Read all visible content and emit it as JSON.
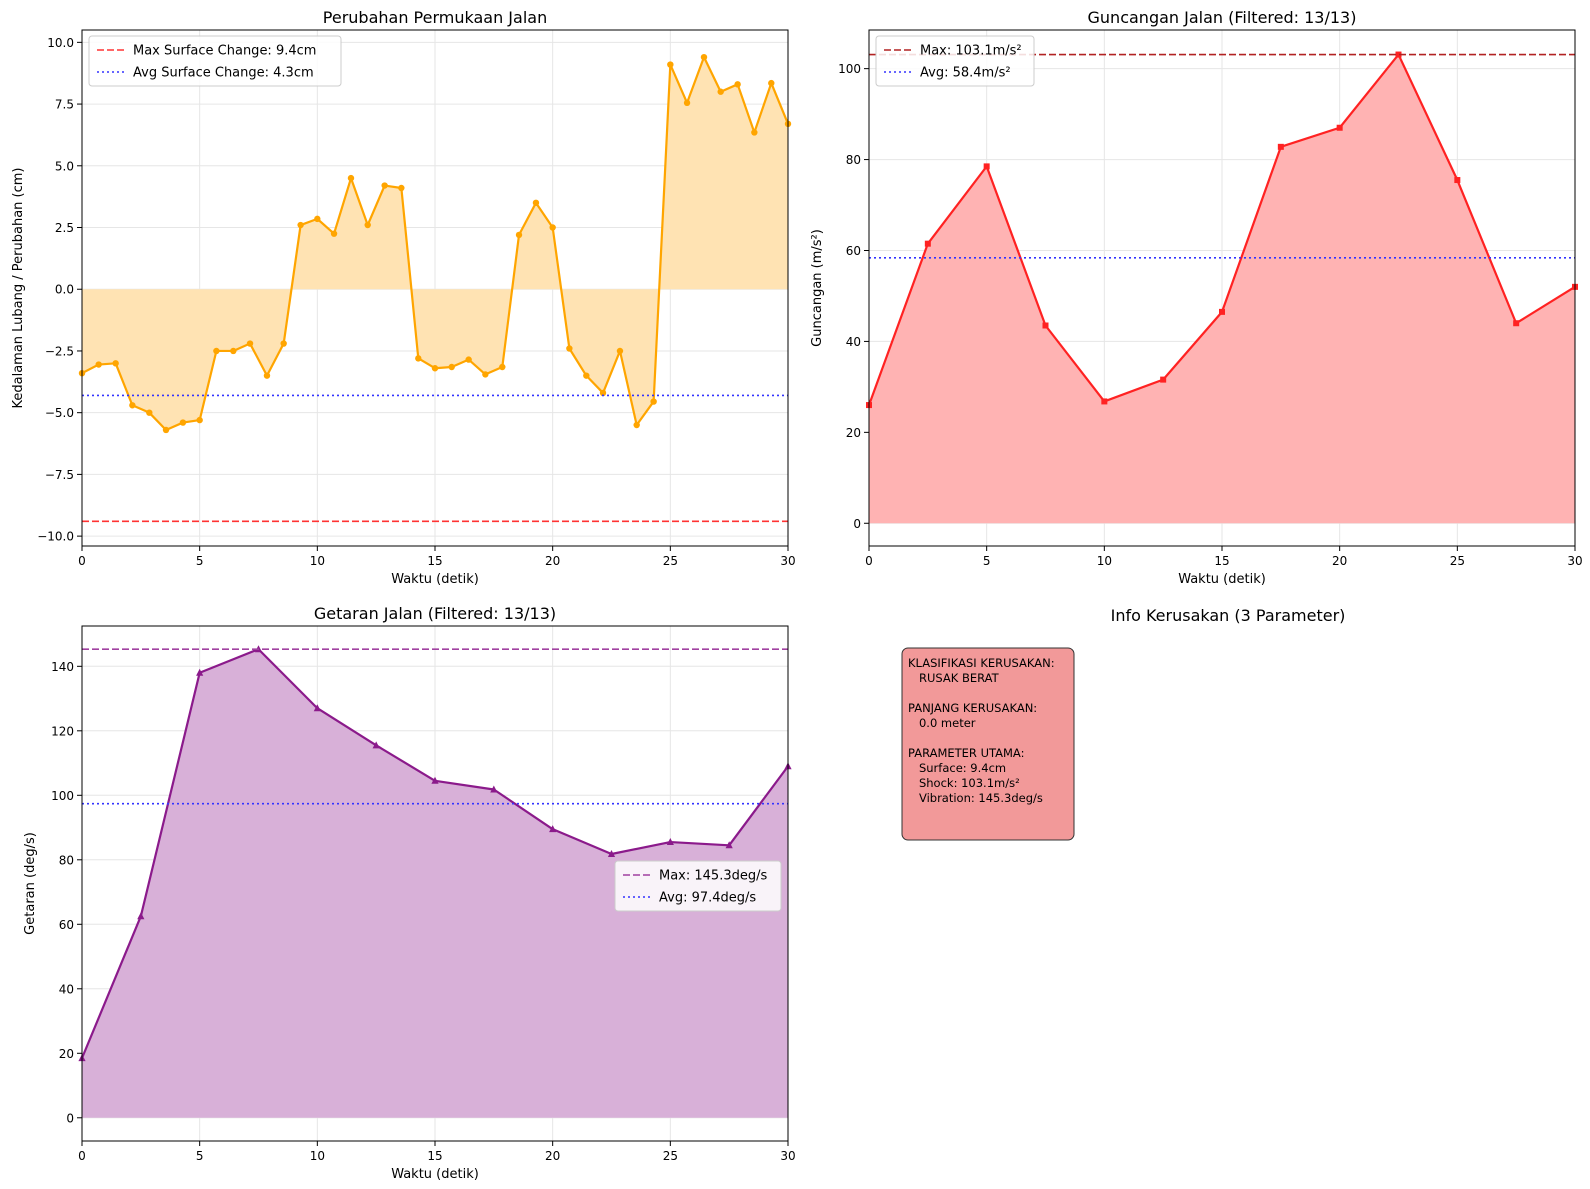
{
  "chart_data": [
    {
      "id": "surface",
      "type": "area",
      "title": "Perubahan Permukaan Jalan",
      "xlabel": "Waktu (detik)",
      "ylabel": "Kedalaman Lubang / Perubahan (cm)",
      "xlim": [
        0,
        30
      ],
      "ylim": [
        -10.4,
        10.5
      ],
      "xticks": [
        0,
        5,
        10,
        15,
        20,
        25,
        30
      ],
      "yticks": [
        -10.0,
        -7.5,
        -5.0,
        -2.5,
        0.0,
        2.5,
        5.0,
        7.5,
        10.0
      ],
      "ytick_labels": [
        "−10.0",
        "−7.5",
        "−5.0",
        "−2.5",
        "0.0",
        "2.5",
        "5.0",
        "7.5",
        "10.0"
      ],
      "grid": true,
      "legend_position": "upper-left",
      "line_color": "#ffa500",
      "fill_color": "#ffe3b3",
      "marker": "circle",
      "x": [
        0,
        0.71,
        1.43,
        2.14,
        2.86,
        3.57,
        4.29,
        5.0,
        5.71,
        6.43,
        7.14,
        7.86,
        8.57,
        9.29,
        10.0,
        10.71,
        11.43,
        12.14,
        12.86,
        13.57,
        14.29,
        15.0,
        15.71,
        16.43,
        17.14,
        17.86,
        18.57,
        19.29,
        20.0,
        20.71,
        21.43,
        22.14,
        22.86,
        23.57,
        24.29,
        25.0,
        25.71,
        26.43,
        27.14,
        27.86,
        28.57,
        29.29,
        30.0
      ],
      "y": [
        -3.4,
        -3.05,
        -3.0,
        -4.7,
        -5.0,
        -5.7,
        -5.4,
        -5.3,
        -2.5,
        -2.5,
        -2.2,
        -3.5,
        -2.2,
        2.6,
        2.85,
        2.25,
        4.5,
        2.6,
        4.2,
        4.1,
        -2.8,
        -3.2,
        -3.15,
        -2.85,
        -3.45,
        -3.15,
        2.2,
        3.5,
        2.5,
        -2.4,
        -3.5,
        -4.2,
        -2.5,
        -5.5,
        -4.55,
        9.1,
        7.55,
        9.4,
        8.0,
        8.3,
        6.35,
        8.35,
        6.7
      ],
      "reference_lines": [
        {
          "label": "Max Surface Change: 9.4cm",
          "value": -9.4,
          "color": "#ff3333",
          "style": "dashed"
        },
        {
          "label": "Avg Surface Change: 4.3cm",
          "value": -4.3,
          "color": "#3333ff",
          "style": "dotted"
        }
      ]
    },
    {
      "id": "shock",
      "type": "area",
      "title": "Guncangan Jalan (Filtered: 13/13)",
      "xlabel": "Waktu (detik)",
      "ylabel": "Guncangan (m/s²)",
      "xlim": [
        0,
        30
      ],
      "ylim": [
        -5,
        108.5
      ],
      "xticks": [
        0,
        5,
        10,
        15,
        20,
        25,
        30
      ],
      "yticks": [
        0,
        20,
        40,
        60,
        80,
        100
      ],
      "ytick_labels": [
        "0",
        "20",
        "40",
        "60",
        "80",
        "100"
      ],
      "grid": true,
      "legend_position": "upper-left",
      "line_color": "#ff2222",
      "fill_color": "#ffb3b3",
      "marker": "square",
      "x": [
        0,
        2.5,
        5.0,
        7.5,
        10.0,
        12.5,
        15.0,
        17.5,
        20.0,
        22.5,
        25.0,
        27.5,
        30.0
      ],
      "y": [
        26.0,
        61.5,
        78.5,
        43.5,
        26.8,
        31.6,
        46.5,
        82.8,
        87.0,
        103.1,
        75.5,
        44.0,
        52.0
      ],
      "reference_lines": [
        {
          "label": "Max: 103.1m/s²",
          "value": 103.1,
          "color": "#b22222",
          "style": "dashed"
        },
        {
          "label": "Avg: 58.4m/s²",
          "value": 58.4,
          "color": "#3333ff",
          "style": "dotted"
        }
      ]
    },
    {
      "id": "vibration",
      "type": "area",
      "title": "Getaran Jalan (Filtered: 13/13)",
      "xlabel": "Waktu (detik)",
      "ylabel": "Getaran (deg/s)",
      "xlim": [
        0,
        30
      ],
      "ylim": [
        -7.2,
        152.5
      ],
      "xticks": [
        0,
        5,
        10,
        15,
        20,
        25,
        30
      ],
      "yticks": [
        0,
        20,
        40,
        60,
        80,
        100,
        120,
        140
      ],
      "ytick_labels": [
        "0",
        "20",
        "40",
        "60",
        "80",
        "100",
        "120",
        "140"
      ],
      "grid": true,
      "legend_position": "center-right",
      "line_color": "#8b1a8b",
      "fill_color": "#d8b0d8",
      "marker": "triangle",
      "x": [
        0,
        2.5,
        5.0,
        7.5,
        10.0,
        12.5,
        15.0,
        17.5,
        20.0,
        22.5,
        25.0,
        27.5,
        30.0
      ],
      "y": [
        18.5,
        62.5,
        138.0,
        145.3,
        127.0,
        115.5,
        104.5,
        101.8,
        89.5,
        81.8,
        85.5,
        84.5,
        109.0
      ],
      "reference_lines": [
        {
          "label": "Max: 145.3deg/s",
          "value": 145.3,
          "color": "#a040a0",
          "style": "dashed"
        },
        {
          "label": "Avg: 97.4deg/s",
          "value": 97.4,
          "color": "#3333ff",
          "style": "dotted"
        }
      ]
    }
  ],
  "info_panel": {
    "title": "Info Kerusakan (3 Parameter)",
    "box_color": "#f29999",
    "lines": [
      "KLASIFIKASI KERUSAKAN:",
      "   RUSAK BERAT",
      "",
      "PANJANG KERUSAKAN:",
      "   0.0 meter",
      "",
      "PARAMETER UTAMA:",
      "   Surface: 9.4cm",
      "   Shock: 103.1m/s²",
      "   Vibration: 145.3deg/s"
    ]
  }
}
